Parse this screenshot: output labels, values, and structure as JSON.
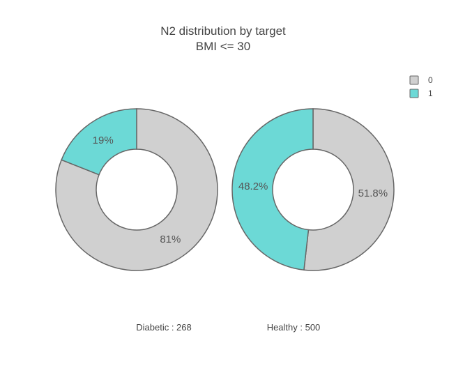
{
  "chart_data": {
    "type": "pie",
    "subtype": "donut",
    "title": "N2 distribution by target",
    "subtitle": "BMI <= 30",
    "legend": {
      "placement": "top-right",
      "items": [
        {
          "label": "0",
          "color": "#d0d0d0"
        },
        {
          "label": "1",
          "color": "#6cd9d6"
        }
      ]
    },
    "charts": [
      {
        "caption": "Diabetic : 268",
        "slices": [
          {
            "category": "0",
            "value": 81,
            "label": "81%",
            "color": "#d0d0d0"
          },
          {
            "category": "1",
            "value": 19,
            "label": "19%",
            "color": "#6cd9d6"
          }
        ]
      },
      {
        "caption": "Healthy : 500",
        "slices": [
          {
            "category": "0",
            "value": 51.8,
            "label": "51.8%",
            "color": "#d0d0d0"
          },
          {
            "category": "1",
            "value": 48.2,
            "label": "48.2%",
            "color": "#6cd9d6"
          }
        ]
      }
    ],
    "colors": {
      "stroke": "#666666",
      "text": "#444444"
    }
  }
}
